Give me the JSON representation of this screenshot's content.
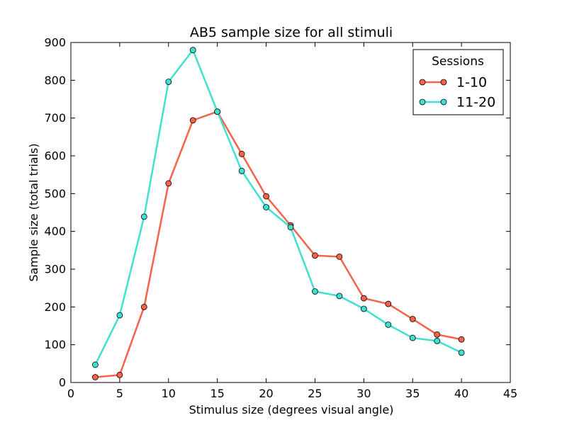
{
  "chart_data": {
    "type": "line",
    "title": "AB5 sample size for all stimuli",
    "xlabel": "Stimulus size (degrees visual angle)",
    "ylabel": "Sample size (total trials)",
    "xlim": [
      0,
      45
    ],
    "ylim": [
      0,
      900
    ],
    "xticks": [
      0,
      5,
      10,
      15,
      20,
      25,
      30,
      35,
      40,
      45
    ],
    "yticks": [
      0,
      100,
      200,
      300,
      400,
      500,
      600,
      700,
      800,
      900
    ],
    "grid": false,
    "legend": {
      "title": "Sessions",
      "placement": "top-right"
    },
    "x": [
      2.5,
      5,
      7.5,
      10,
      12.5,
      15,
      17.5,
      20,
      22.5,
      25,
      27.5,
      30,
      32.5,
      35,
      37.5,
      40
    ],
    "series": [
      {
        "name": "1-10",
        "color": "#f5634a",
        "values": [
          14,
          20,
          200,
          527,
          694,
          717,
          605,
          493,
          416,
          336,
          333,
          223,
          208,
          168,
          127,
          114
        ]
      },
      {
        "name": "11-20",
        "color": "#40e0d0",
        "values": [
          47,
          178,
          439,
          796,
          880,
          717,
          560,
          464,
          411,
          241,
          229,
          195,
          153,
          118,
          110,
          79
        ]
      }
    ]
  }
}
